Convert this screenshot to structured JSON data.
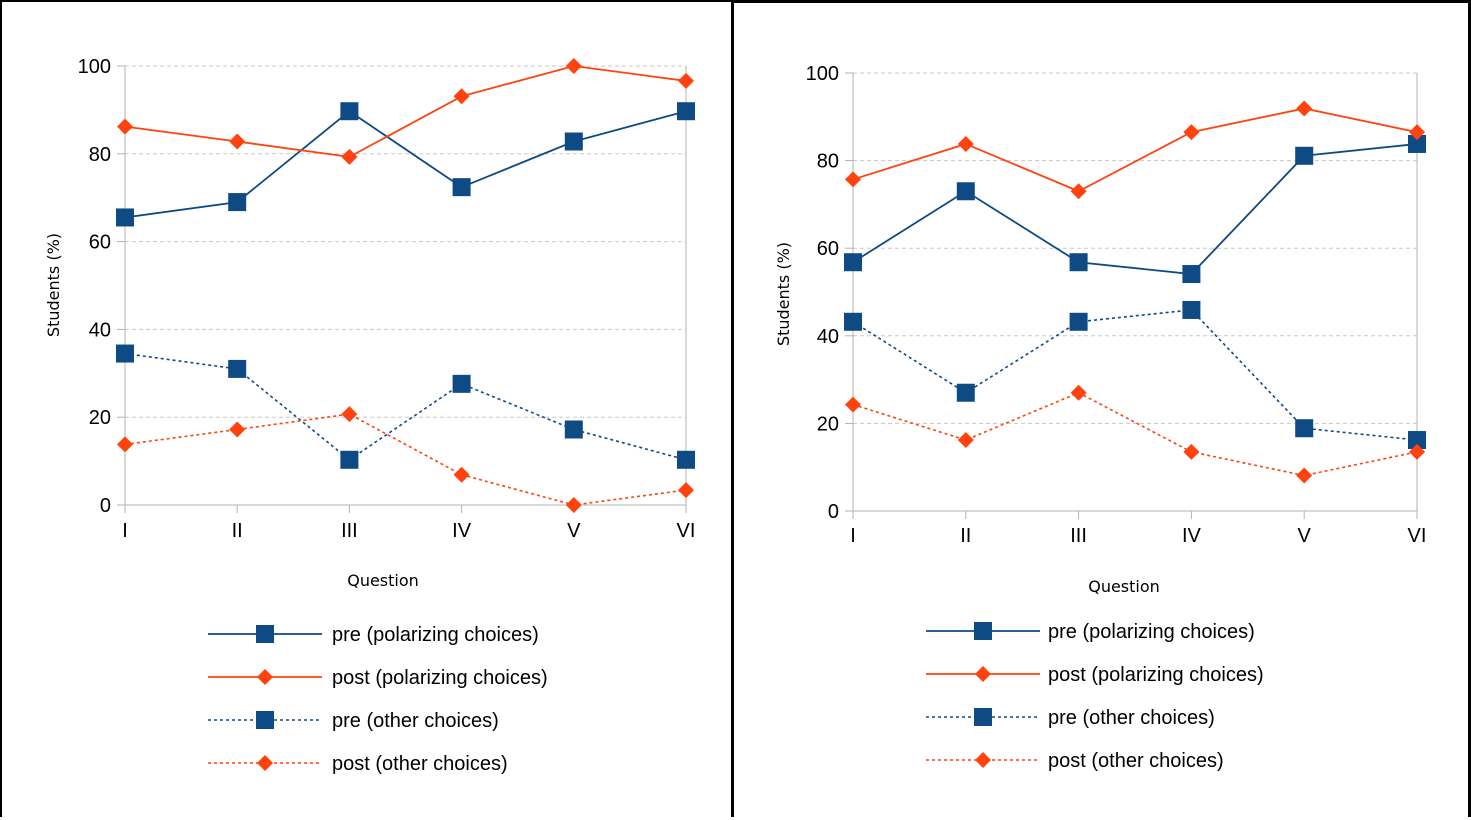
{
  "chart_data": [
    {
      "type": "line",
      "title": "",
      "xlabel": "Question",
      "ylabel": "Students (%)",
      "categories": [
        "I",
        "II",
        "III",
        "IV",
        "V",
        "VI"
      ],
      "ylim": [
        0,
        100
      ],
      "yticks": [
        "0",
        "20",
        "40",
        "60",
        "80",
        "100"
      ],
      "grid": "horizontal dashed",
      "legend_position": "bottom",
      "series": [
        {
          "name": "pre (polarizing choices)",
          "values": [
            65.5,
            69,
            89.7,
            72.4,
            82.8,
            89.7
          ],
          "color": "#0e4a84",
          "marker": "square",
          "line": "solid"
        },
        {
          "name": "post (polarizing choices)",
          "values": [
            86.2,
            82.8,
            79.3,
            93.1,
            100,
            96.6
          ],
          "color": "#ff420e",
          "marker": "diamond",
          "line": "solid"
        },
        {
          "name": "pre (other choices)",
          "values": [
            34.5,
            31,
            10.3,
            27.6,
            17.2,
            10.3
          ],
          "color": "#0e4a84",
          "marker": "square",
          "line": "dotted"
        },
        {
          "name": "post (other choices)",
          "values": [
            13.8,
            17.2,
            20.7,
            6.9,
            0,
            3.4
          ],
          "color": "#ff420e",
          "marker": "diamond",
          "line": "dotted"
        }
      ]
    },
    {
      "type": "line",
      "title": "",
      "xlabel": "Question",
      "ylabel": "Students (%)",
      "categories": [
        "I",
        "II",
        "III",
        "IV",
        "V",
        "VI"
      ],
      "ylim": [
        0,
        100
      ],
      "yticks": [
        "0",
        "20",
        "40",
        "60",
        "80",
        "100"
      ],
      "grid": "horizontal dashed",
      "legend_position": "bottom",
      "series": [
        {
          "name": "pre (polarizing choices)",
          "values": [
            56.8,
            73,
            56.8,
            54.1,
            81.1,
            83.8
          ],
          "color": "#0e4a84",
          "marker": "square",
          "line": "solid"
        },
        {
          "name": "post (polarizing choices)",
          "values": [
            75.7,
            83.8,
            73,
            86.5,
            91.9,
            86.5
          ],
          "color": "#ff420e",
          "marker": "diamond",
          "line": "solid"
        },
        {
          "name": "pre (other choices)",
          "values": [
            43.2,
            27,
            43.2,
            45.9,
            18.9,
            16.2
          ],
          "color": "#0e4a84",
          "marker": "square",
          "line": "dotted"
        },
        {
          "name": "post (other choices)",
          "values": [
            24.3,
            16.2,
            27,
            13.5,
            8.1,
            13.5
          ],
          "color": "#ff420e",
          "marker": "diamond",
          "line": "dotted"
        }
      ]
    }
  ]
}
